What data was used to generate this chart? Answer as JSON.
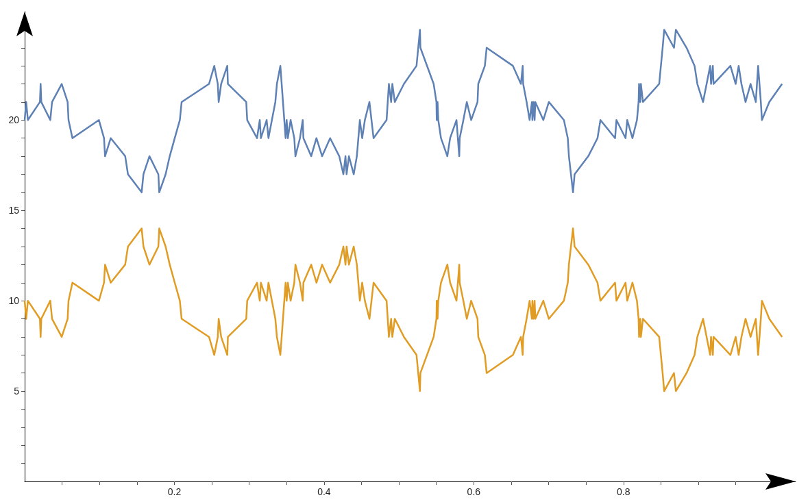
{
  "chart_data": {
    "type": "line",
    "x": [
      0,
      0.002,
      0.0043,
      0.0204,
      0.0213,
      0.0222,
      0.0342,
      0.0366,
      0.0495,
      0.0574,
      0.0586,
      0.0638,
      0.0992,
      0.106,
      0.1074,
      0.115,
      0.1343,
      0.138,
      0.1563,
      0.1587,
      0.1667,
      0.1786,
      0.1798,
      0.1883,
      0.1938,
      0.2005,
      0.2073,
      0.2097,
      0.2463,
      0.2533,
      0.258,
      0.2592,
      0.2625,
      0.2707,
      0.2715,
      0.296,
      0.2973,
      0.3104,
      0.3141,
      0.3156,
      0.3233,
      0.3257,
      0.3303,
      0.3349,
      0.337,
      0.3416,
      0.3486,
      0.35,
      0.3516,
      0.3553,
      0.3602,
      0.3617,
      0.3678,
      0.3715,
      0.3724,
      0.3828,
      0.3898,
      0.3974,
      0.4081,
      0.4203,
      0.4258,
      0.4286,
      0.4301,
      0.4332,
      0.4396,
      0.4438,
      0.4478,
      0.4509,
      0.4545,
      0.4606,
      0.4661,
      0.4835,
      0.4866,
      0.4896,
      0.4912,
      0.4945,
      0.5067,
      0.5235,
      0.5281,
      0.5287,
      0.5464,
      0.5501,
      0.5505,
      0.5516,
      0.5526,
      0.5562,
      0.5647,
      0.5684,
      0.5769,
      0.5806,
      0.5812,
      0.5861,
      0.5907,
      0.5965,
      0.605,
      0.606,
      0.6148,
      0.6172,
      0.6523,
      0.663,
      0.6654,
      0.666,
      0.6706,
      0.6746,
      0.6777,
      0.6783,
      0.6798,
      0.6813,
      0.6822,
      0.6929,
      0.7003,
      0.7204,
      0.7256,
      0.7271,
      0.7326,
      0.7347,
      0.753,
      0.7653,
      0.7692,
      0.7888,
      0.7906,
      0.8028,
      0.805,
      0.812,
      0.818,
      0.8202,
      0.8208,
      0.8224,
      0.8233,
      0.826,
      0.8477,
      0.8523,
      0.8544,
      0.8675,
      0.87,
      0.8843,
      0.895,
      0.8987,
      0.9063,
      0.9158,
      0.917,
      0.9194,
      0.9203,
      0.9429,
      0.9499,
      0.9539,
      0.9576,
      0.9631,
      0.9698,
      0.9768,
      0.9799,
      0.9835,
      0.985,
      0.9948,
      1.0119
    ],
    "series": [
      {
        "color": "#5e81b5",
        "values": [
          20,
          21,
          20,
          21,
          22,
          21,
          20,
          21,
          22,
          21,
          20,
          19,
          20,
          19,
          18,
          19,
          18,
          17,
          16,
          17,
          18,
          17,
          16,
          17,
          18,
          19,
          20,
          21,
          22,
          23,
          22,
          21,
          22,
          23,
          22,
          21,
          20,
          19,
          20,
          19,
          20,
          19,
          20,
          21,
          22,
          23,
          19,
          20,
          19,
          20,
          19,
          18,
          19,
          20,
          19,
          18,
          19,
          18,
          19,
          18,
          17,
          18,
          17,
          18,
          17,
          18,
          20,
          19,
          20,
          21,
          19,
          20,
          22,
          21,
          22,
          21,
          22,
          23,
          25,
          24,
          22,
          21,
          20,
          21,
          20,
          19,
          18,
          19,
          20,
          18,
          19,
          20,
          21,
          20,
          21,
          22,
          23,
          24,
          23,
          22,
          23,
          22,
          21,
          20,
          21,
          20,
          21,
          20,
          21,
          20,
          21,
          20,
          19,
          18,
          16,
          17,
          18,
          19,
          20,
          19,
          20,
          19,
          20,
          19,
          20,
          21,
          22,
          21,
          22,
          21,
          22,
          24,
          25,
          24,
          25,
          24,
          23,
          22,
          21,
          23,
          22,
          23,
          22,
          23,
          22,
          23,
          22,
          21,
          22,
          21,
          23,
          21,
          20,
          21,
          22
        ]
      },
      {
        "color": "#e19c24",
        "values": [
          10,
          9,
          10,
          9,
          8,
          9,
          10,
          9,
          8,
          9,
          10,
          11,
          10,
          11,
          12,
          11,
          12,
          13,
          14,
          13,
          12,
          13,
          14,
          13,
          12,
          11,
          10,
          9,
          8,
          7,
          8,
          9,
          8,
          7,
          8,
          9,
          10,
          11,
          10,
          11,
          10,
          11,
          10,
          9,
          8,
          7,
          11,
          10,
          11,
          10,
          11,
          12,
          11,
          10,
          11,
          12,
          11,
          12,
          11,
          12,
          13,
          12,
          13,
          12,
          13,
          12,
          10,
          11,
          10,
          9,
          11,
          10,
          8,
          9,
          8,
          9,
          8,
          7,
          5,
          6,
          8,
          9,
          10,
          9,
          10,
          11,
          12,
          11,
          10,
          12,
          11,
          10,
          9,
          10,
          9,
          8,
          7,
          6,
          7,
          8,
          7,
          8,
          9,
          10,
          9,
          10,
          9,
          10,
          9,
          10,
          9,
          10,
          11,
          12,
          14,
          13,
          12,
          11,
          10,
          11,
          10,
          11,
          10,
          11,
          10,
          9,
          8,
          9,
          8,
          9,
          8,
          6,
          5,
          6,
          5,
          6,
          7,
          8,
          9,
          7,
          8,
          7,
          8,
          7,
          8,
          7,
          8,
          9,
          8,
          9,
          7,
          9,
          10,
          9,
          8
        ]
      }
    ],
    "xlim": [
      0,
      1.03
    ],
    "xticks": [
      {
        "value": 0.05,
        "label": null
      },
      {
        "value": 0.1,
        "label": null
      },
      {
        "value": 0.15,
        "label": null
      },
      0.2,
      {
        "value": 0.25,
        "label": null
      },
      {
        "value": 0.3,
        "label": null
      },
      {
        "value": 0.35,
        "label": null
      },
      0.4,
      {
        "value": 0.45,
        "label": null
      },
      {
        "value": 0.5,
        "label": null
      },
      {
        "value": 0.55,
        "label": null
      },
      0.6,
      {
        "value": 0.65,
        "label": null
      },
      {
        "value": 0.7,
        "label": null
      },
      {
        "value": 0.75,
        "label": null
      },
      0.8,
      {
        "value": 0.85,
        "label": null
      },
      {
        "value": 0.9,
        "label": null
      },
      {
        "value": 0.95,
        "label": null
      },
      {
        "value": 1,
        "label": null
      }
    ],
    "ylim": [
      0,
      26
    ],
    "yticks": [
      {
        "value": 1,
        "label": null
      },
      {
        "value": 2,
        "label": null
      },
      {
        "value": 3,
        "label": null
      },
      {
        "value": 4,
        "label": null
      },
      5,
      {
        "value": 6,
        "label": null
      },
      {
        "value": 7,
        "label": null
      },
      {
        "value": 8,
        "label": null
      },
      {
        "value": 9,
        "label": null
      },
      10,
      {
        "value": 11,
        "label": null
      },
      {
        "value": 12,
        "label": null
      },
      {
        "value": 13,
        "label": null
      },
      {
        "value": 14,
        "label": null
      },
      15,
      {
        "value": 16,
        "label": null
      },
      {
        "value": 17,
        "label": null
      },
      {
        "value": 18,
        "label": null
      },
      {
        "value": 19,
        "label": null
      },
      20,
      {
        "value": 21,
        "label": null
      },
      {
        "value": 22,
        "label": null
      },
      {
        "value": 23,
        "label": null
      },
      {
        "value": 24,
        "label": null
      },
      {
        "value": 25,
        "label": null
      }
    ],
    "grid": false,
    "marker": "none",
    "line_style": "solid"
  }
}
